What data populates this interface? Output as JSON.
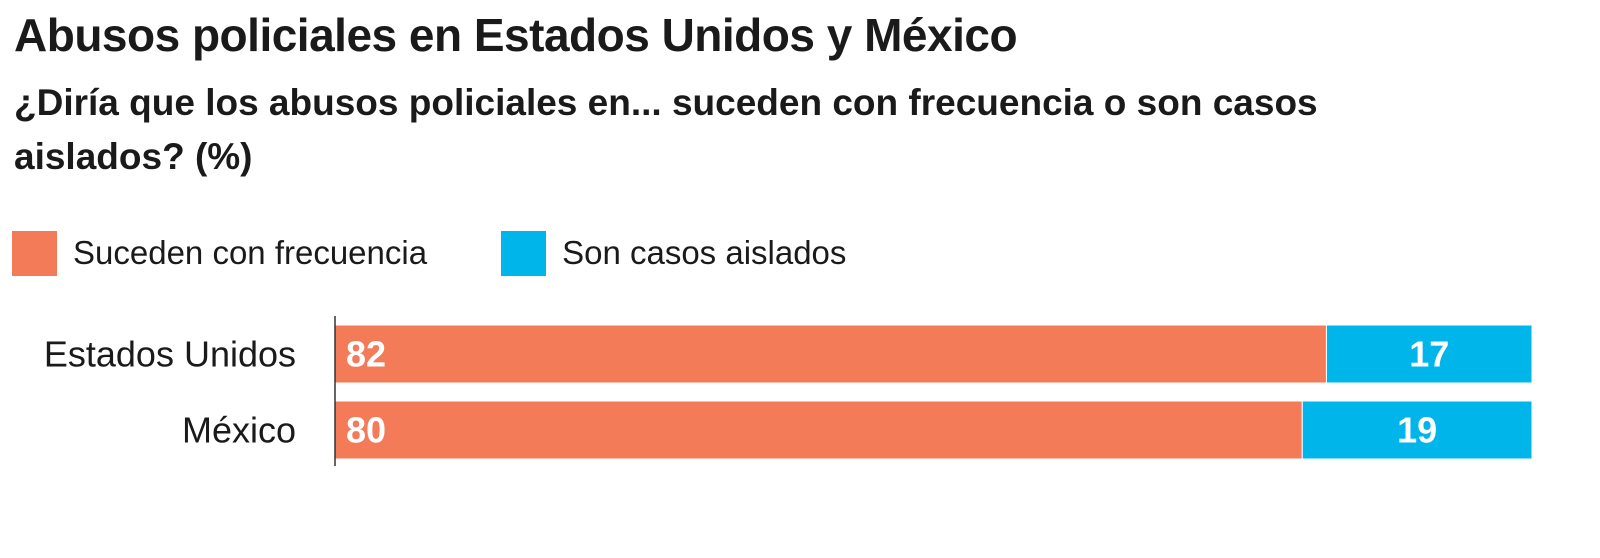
{
  "chart_data": {
    "type": "bar",
    "orientation": "horizontal",
    "stacked": true,
    "title": "Abusos policiales en Estados Unidos y México",
    "subtitle": "¿Diría que los abusos policiales en...  suceden con frecuencia o son casos aislados? (%)",
    "categories": [
      "Estados Unidos",
      "México"
    ],
    "series": [
      {
        "name": "Suceden con frecuencia",
        "color": "#F47B58",
        "values": [
          82,
          80
        ]
      },
      {
        "name": "Son casos aislados",
        "color": "#00B5EA",
        "values": [
          17,
          19
        ]
      }
    ],
    "xlim": [
      0,
      99
    ],
    "legend_position": "top-left",
    "grid": false
  }
}
